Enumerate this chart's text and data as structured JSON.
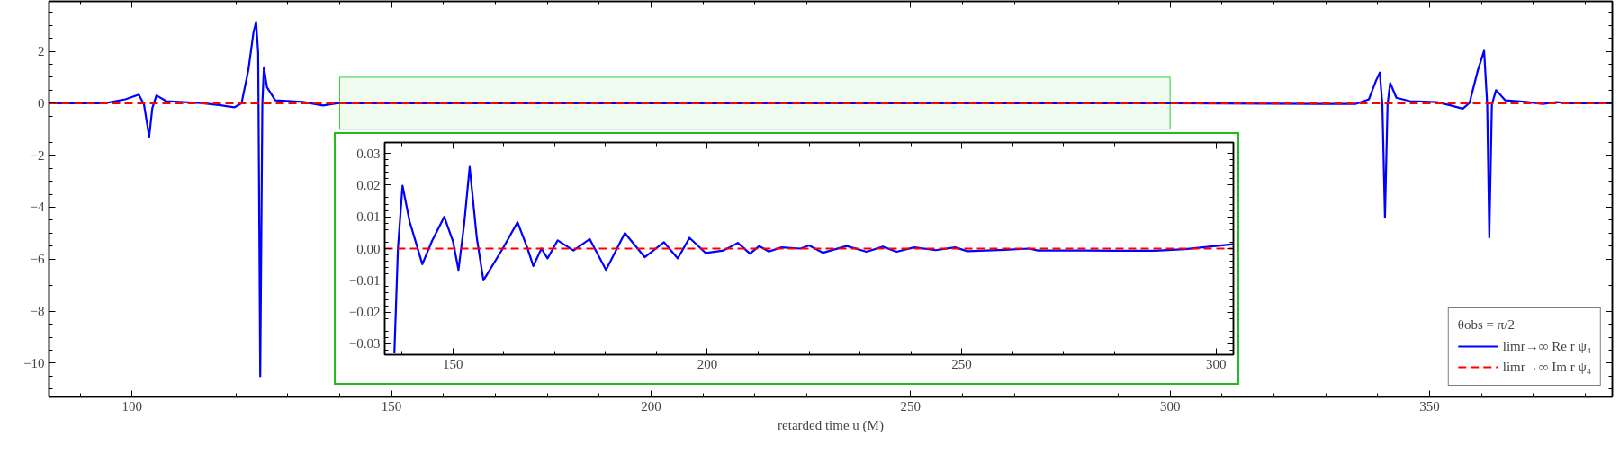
{
  "chart_data": [
    {
      "type": "line",
      "xlabel": "retarded time u (M)",
      "xlim": [
        84,
        385.2
      ],
      "ylim": [
        -11.3,
        3.92
      ],
      "xticks": [
        100,
        150,
        200,
        250,
        300,
        350
      ],
      "yticks": [
        {
          "value": -10,
          "label": "−10"
        },
        {
          "value": -8,
          "label": "−8"
        },
        {
          "value": -6,
          "label": "−6"
        },
        {
          "value": -4,
          "label": "−4"
        },
        {
          "value": -2,
          "label": "−2"
        },
        0,
        2
      ],
      "legend": "bottom right",
      "legend_title": "θobs = π/2",
      "bands": [
        {
          "axis": "x",
          "from": 140,
          "to": 300,
          "color": "#33cc33"
        }
      ],
      "series": [
        {
          "name": "limr→∞ Re r ψ₄",
          "color": "#0000ff",
          "line_style": "solid",
          "x": [
            84,
            94.7,
            98.7,
            101.3,
            102.3,
            103.3,
            103.9,
            104.7,
            106.6,
            113.2,
            117.1,
            119.7,
            121.1,
            122.4,
            123.4,
            123.9,
            124.3,
            124.7,
            125.1,
            125.4,
            126.0,
            127.6,
            132.9,
            136.8,
            139.5,
            160,
            200,
            250,
            300,
            329.1,
            335.7,
            338.3,
            339.7,
            340.4,
            340.9,
            341.4,
            341.9,
            342.4,
            343.6,
            346.2,
            351.4,
            354.1,
            356.4,
            357.7,
            359.3,
            360.5,
            361.1,
            361.5,
            362.0,
            362.8,
            364.6,
            368.6,
            371.8,
            374.5,
            376.4,
            385.2
          ],
          "values": [
            0,
            0,
            0.15,
            0.33,
            -0.05,
            -1.29,
            -0.19,
            0.3,
            0.08,
            0.01,
            -0.08,
            -0.16,
            0,
            1.27,
            2.73,
            3.13,
            1.94,
            -10.5,
            -0.05,
            1.38,
            0.61,
            0.11,
            0.05,
            -0.09,
            0,
            0,
            0,
            0,
            0,
            -0.03,
            -0.03,
            0.15,
            0.88,
            1.18,
            -0.05,
            -4.4,
            -0.05,
            0.78,
            0.21,
            0.08,
            0.04,
            -0.09,
            -0.21,
            0.01,
            1.27,
            2.02,
            -0.05,
            -5.17,
            -0.05,
            0.5,
            0.11,
            0.05,
            -0.03,
            0.04,
            0,
            0
          ]
        },
        {
          "name": "limr→∞ Im r ψ₄",
          "color": "#ff0000",
          "line_style": "dashed",
          "x": [
            84,
            385.2
          ],
          "values": [
            0,
            0
          ]
        }
      ]
    },
    {
      "type": "line",
      "xlim": [
        136.6,
        303.4
      ],
      "ylim": [
        -0.0334,
        0.0334
      ],
      "xticks": [
        150,
        200,
        250,
        300
      ],
      "yticks": [
        {
          "value": -0.03,
          "label": "−0.03"
        },
        {
          "value": -0.02,
          "label": "−0.02"
        },
        {
          "value": -0.01,
          "label": "−0.01"
        },
        {
          "value": 0,
          "label": "0.00"
        },
        {
          "value": 0.01,
          "label": "0.01"
        },
        {
          "value": 0.02,
          "label": "0.02"
        },
        {
          "value": 0.03,
          "label": "0.03"
        }
      ],
      "series": [
        {
          "color": "#0000ff",
          "line_style": "solid",
          "x": [
            138.5,
            139.2,
            140.1,
            141.5,
            144.0,
            145.9,
            148.3,
            150.0,
            151.1,
            152.2,
            153.3,
            154.7,
            156.0,
            159.8,
            162.7,
            164.6,
            165.8,
            167.4,
            168.6,
            170.6,
            173.7,
            176.9,
            180.1,
            183.8,
            187.7,
            191.5,
            194.2,
            196.5,
            199.7,
            203.2,
            206.0,
            208.4,
            210.2,
            212.1,
            214.6,
            218.3,
            220.0,
            222.7,
            227.4,
            231.3,
            234.5,
            237.2,
            240.7,
            244.9,
            248.7,
            251.1,
            258.5,
            263.2,
            265.0,
            274.4,
            279.7,
            288.0,
            293.9,
            303.4
          ],
          "values": [
            -0.033,
            0,
            0.0198,
            0.0085,
            -0.0049,
            0.0024,
            0.01,
            0.0024,
            -0.0067,
            0.0075,
            0.0257,
            0.0034,
            -0.01,
            0,
            0.0083,
            0.0004,
            -0.0055,
            0,
            -0.0031,
            0.0026,
            -0.0006,
            0.003,
            -0.0067,
            0.0049,
            -0.0027,
            0.002,
            -0.0031,
            0.0034,
            -0.0014,
            -0.0006,
            0.0018,
            -0.0016,
            0.0008,
            -0.0009,
            0.0004,
            0,
            0.001,
            -0.0013,
            0.0008,
            -0.001,
            0.0006,
            -0.001,
            0.0004,
            -0.0005,
            0.0004,
            -0.0008,
            -0.0004,
            0,
            -0.0006,
            -0.0006,
            -0.0007,
            -0.0007,
            -0.0002,
            0.0014
          ]
        },
        {
          "color": "#ff0000",
          "line_style": "dashed",
          "x": [
            136.6,
            303.4
          ],
          "values": [
            0,
            0
          ]
        }
      ]
    }
  ]
}
